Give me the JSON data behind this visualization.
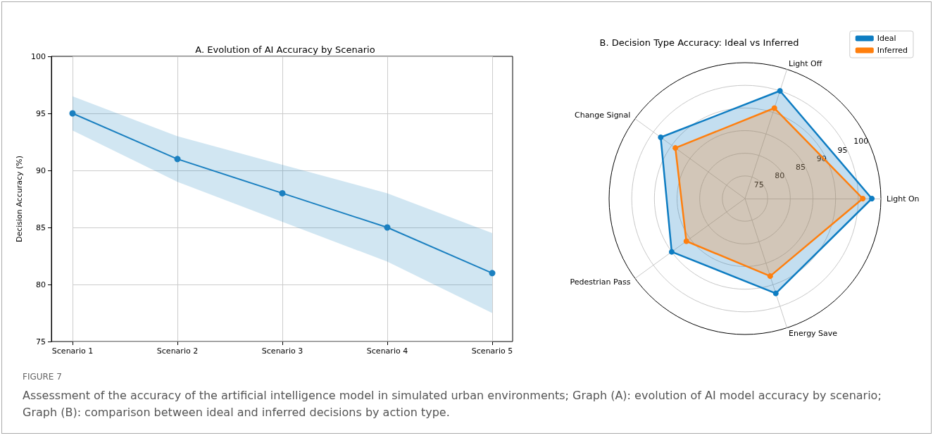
{
  "chart_data": [
    {
      "type": "line",
      "title": "A. Evolution of AI Accuracy by Scenario",
      "ylabel": "Decision Accuracy (%)",
      "categories": [
        "Scenario 1",
        "Scenario 2",
        "Scenario 3",
        "Scenario 4",
        "Scenario 5"
      ],
      "series": [
        {
          "color": "#1b80c0",
          "values": [
            95,
            91,
            88,
            85,
            81
          ],
          "lower": [
            93.5,
            89,
            85.5,
            82,
            77.5
          ],
          "upper": [
            96.5,
            93,
            90.5,
            88,
            84.5
          ]
        }
      ],
      "ylim": [
        75,
        100
      ],
      "yticks": [
        75,
        80,
        85,
        90,
        95,
        100
      ],
      "grid": true,
      "marker": "circle",
      "annotations": [
        "FIGURE 7",
        "Assessment of the accuracy of the artificial intelligence model in simulated urban environments; Graph (A): evolution of AI model accuracy by scenario; Graph (B): comparison between ideal and inferred decisions by action type."
      ]
    },
    {
      "type": "radar",
      "title": "B. Decision Type Accuracy: Ideal vs Inferred",
      "categories": [
        "Light Off",
        "Light On",
        "Energy Save",
        "Pedestrian Pass",
        "Change Signal"
      ],
      "series": [
        {
          "name": "Ideal",
          "color": "#0e7dc2",
          "values": [
            95,
            98,
            92,
            90,
            93
          ]
        },
        {
          "name": "Inferred",
          "color": "#ff7f0e",
          "values": [
            91,
            96,
            88,
            86,
            89
          ]
        }
      ],
      "ylim": [
        70,
        100
      ],
      "yticks": [
        75,
        80,
        85,
        90,
        95,
        100
      ],
      "grid": true,
      "legend": "top right",
      "marker": "circle"
    }
  ]
}
